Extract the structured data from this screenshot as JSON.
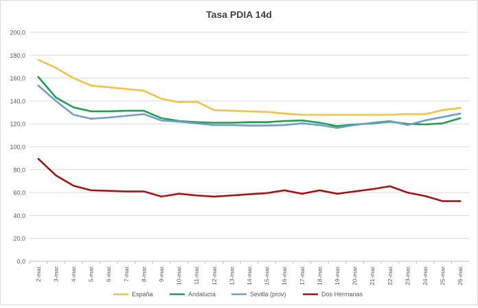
{
  "chart_data": {
    "type": "line",
    "title": "Tasa PDIA 14d",
    "xlabel": "",
    "ylabel": "",
    "ylim": [
      0,
      200
    ],
    "ytick_step": 20,
    "ytick_labels": [
      "0,0",
      "20,0",
      "40,0",
      "60,0",
      "80,0",
      "100,0",
      "120,0",
      "140,0",
      "160,0",
      "180,0",
      "200,0"
    ],
    "grid": true,
    "legend_position": "bottom",
    "categories": [
      "2-mar.",
      "3-mar.",
      "4-mar.",
      "5-mar.",
      "6-mar.",
      "7-mar.",
      "8-mar.",
      "9-mar.",
      "10-mar.",
      "11-mar.",
      "12-mar.",
      "13-mar.",
      "14-mar.",
      "15-mar.",
      "16-mar.",
      "17-mar.",
      "18-mar.",
      "19-mar.",
      "20-mar.",
      "21-mar.",
      "22-mar.",
      "23-mar.",
      "24-mar.",
      "25-mar.",
      "26-mar."
    ],
    "series": [
      {
        "name": "España",
        "color": "#f5c242",
        "values": [
          176,
          169,
          160,
          153.5,
          152,
          150.5,
          149,
          142,
          139,
          139.5,
          132,
          131.5,
          131,
          130.5,
          129,
          128,
          128,
          128,
          128,
          128,
          128,
          128.5,
          128.5,
          132,
          134
        ]
      },
      {
        "name": "Andalucía",
        "color": "#1f9e52",
        "values": [
          161,
          143,
          134.5,
          131,
          131,
          131.5,
          131.5,
          125,
          122.5,
          121.5,
          121,
          121,
          121.5,
          121.5,
          122.5,
          123,
          121,
          118,
          119.5,
          120.5,
          122,
          120,
          119.5,
          120.5,
          125
        ]
      },
      {
        "name": "Sevilla (prov)",
        "color": "#6e9fc9",
        "values": [
          153.5,
          140,
          128,
          124.5,
          125.5,
          127,
          128.5,
          123,
          122,
          120.5,
          119,
          119,
          118.5,
          118.5,
          119,
          120.5,
          119,
          116.5,
          119,
          121,
          122.5,
          119,
          123,
          126,
          129
        ]
      },
      {
        "name": "Dos Hermanas",
        "color": "#a31515",
        "values": [
          89.5,
          75,
          66,
          62,
          61.5,
          61,
          61,
          56.5,
          59,
          57.5,
          56.5,
          57.5,
          58.5,
          59.5,
          62,
          59,
          62,
          59,
          61,
          63,
          65.5,
          60,
          57,
          52.5,
          52.5
        ]
      }
    ]
  }
}
